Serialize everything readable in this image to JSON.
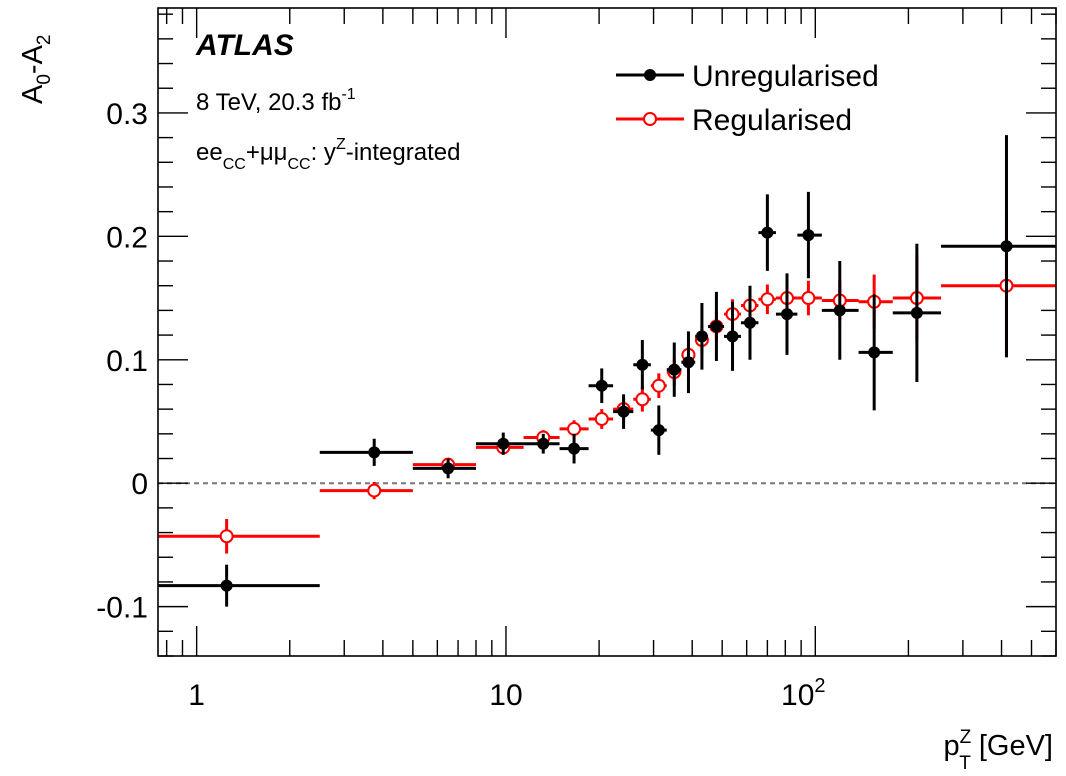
{
  "chart_data": {
    "type": "scatter",
    "title": "",
    "xlabel": "p_T^Z [GeV]",
    "ylabel": "A_0-A_2",
    "xscale": "log",
    "xlim": [
      0.75,
      600
    ],
    "ylim": [
      -0.14,
      0.385
    ],
    "xticks": [
      {
        "value": 1,
        "label": "1"
      },
      {
        "value": 10,
        "label": "10"
      },
      {
        "value": 100,
        "label": "10^2"
      }
    ],
    "yticks": [
      {
        "value": -0.1,
        "label": "-0.1"
      },
      {
        "value": 0,
        "label": "0"
      },
      {
        "value": 0.1,
        "label": "0.1"
      },
      {
        "value": 0.2,
        "label": "0.2"
      },
      {
        "value": 0.3,
        "label": "0.3"
      }
    ],
    "reference_line": {
      "y": 0,
      "style": "dashed",
      "color": "#777777"
    },
    "annotations": {
      "experiment": "ATLAS",
      "energy": "8 TeV, 20.3 fb",
      "lumi_exp": "-1",
      "channel": "ee_CC+μμ_CC: y^Z-integrated"
    },
    "legend_position": "top-right",
    "series": [
      {
        "name": "Unregularised",
        "color": "#000000",
        "marker": "filled-circle",
        "points": [
          {
            "x": 1.25,
            "xlo": 0.75,
            "xhi": 2.5,
            "y": -0.083,
            "yerr": 0.017
          },
          {
            "x": 3.75,
            "xlo": 2.5,
            "xhi": 5.0,
            "y": 0.025,
            "yerr": 0.011
          },
          {
            "x": 6.5,
            "xlo": 5.0,
            "xhi": 8.0,
            "y": 0.012,
            "yerr": 0.008
          },
          {
            "x": 9.8,
            "xlo": 8.0,
            "xhi": 11.4,
            "y": 0.032,
            "yerr": 0.009
          },
          {
            "x": 13.2,
            "xlo": 11.4,
            "xhi": 14.9,
            "y": 0.032,
            "yerr": 0.008
          },
          {
            "x": 16.6,
            "xlo": 14.9,
            "xhi": 18.5,
            "y": 0.028,
            "yerr": 0.012
          },
          {
            "x": 20.4,
            "xlo": 18.5,
            "xhi": 22.2,
            "y": 0.079,
            "yerr": 0.014
          },
          {
            "x": 24.0,
            "xlo": 22.2,
            "xhi": 25.8,
            "y": 0.058,
            "yerr": 0.014
          },
          {
            "x": 27.6,
            "xlo": 25.8,
            "xhi": 29.4,
            "y": 0.096,
            "yerr": 0.02
          },
          {
            "x": 31.2,
            "xlo": 29.4,
            "xhi": 33.1,
            "y": 0.043,
            "yerr": 0.02
          },
          {
            "x": 35.0,
            "xlo": 33.1,
            "xhi": 36.9,
            "y": 0.092,
            "yerr": 0.022
          },
          {
            "x": 38.9,
            "xlo": 36.9,
            "xhi": 40.9,
            "y": 0.098,
            "yerr": 0.025
          },
          {
            "x": 43.0,
            "xlo": 40.9,
            "xhi": 45.0,
            "y": 0.119,
            "yerr": 0.027
          },
          {
            "x": 47.9,
            "xlo": 45.0,
            "xhi": 50.7,
            "y": 0.127,
            "yerr": 0.028
          },
          {
            "x": 54.0,
            "xlo": 50.7,
            "xhi": 57.5,
            "y": 0.119,
            "yerr": 0.028
          },
          {
            "x": 61.5,
            "xlo": 57.5,
            "xhi": 65.5,
            "y": 0.13,
            "yerr": 0.03
          },
          {
            "x": 70.0,
            "xlo": 65.5,
            "xhi": 74.6,
            "y": 0.203,
            "yerr": 0.031
          },
          {
            "x": 81.0,
            "xlo": 74.6,
            "xhi": 87.5,
            "y": 0.137,
            "yerr": 0.033
          },
          {
            "x": 95.0,
            "xlo": 87.5,
            "xhi": 105,
            "y": 0.201,
            "yerr": 0.035
          },
          {
            "x": 120,
            "xlo": 105,
            "xhi": 138,
            "y": 0.14,
            "yerr": 0.04
          },
          {
            "x": 155,
            "xlo": 138,
            "xhi": 178,
            "y": 0.106,
            "yerr": 0.047
          },
          {
            "x": 213,
            "xlo": 178,
            "xhi": 255,
            "y": 0.138,
            "yerr": 0.056
          },
          {
            "x": 415,
            "xlo": 255,
            "xhi": 600,
            "y": 0.192,
            "yerr": 0.09
          }
        ]
      },
      {
        "name": "Regularised",
        "color": "#ff0000",
        "marker": "open-circle",
        "points": [
          {
            "x": 1.25,
            "xlo": 0.75,
            "xhi": 2.5,
            "y": -0.043,
            "yerr": 0.014
          },
          {
            "x": 3.75,
            "xlo": 2.5,
            "xhi": 5.0,
            "y": -0.006,
            "yerr": 0.007
          },
          {
            "x": 6.5,
            "xlo": 5.0,
            "xhi": 8.0,
            "y": 0.015,
            "yerr": 0.005
          },
          {
            "x": 9.8,
            "xlo": 8.0,
            "xhi": 11.4,
            "y": 0.029,
            "yerr": 0.005
          },
          {
            "x": 13.2,
            "xlo": 11.4,
            "xhi": 14.9,
            "y": 0.037,
            "yerr": 0.006
          },
          {
            "x": 16.6,
            "xlo": 14.9,
            "xhi": 18.5,
            "y": 0.044,
            "yerr": 0.007
          },
          {
            "x": 20.4,
            "xlo": 18.5,
            "xhi": 22.2,
            "y": 0.052,
            "yerr": 0.008
          },
          {
            "x": 24.0,
            "xlo": 22.2,
            "xhi": 25.8,
            "y": 0.06,
            "yerr": 0.009
          },
          {
            "x": 27.6,
            "xlo": 25.8,
            "xhi": 29.4,
            "y": 0.068,
            "yerr": 0.01
          },
          {
            "x": 31.2,
            "xlo": 29.4,
            "xhi": 33.1,
            "y": 0.079,
            "yerr": 0.01
          },
          {
            "x": 35.0,
            "xlo": 33.1,
            "xhi": 36.9,
            "y": 0.09,
            "yerr": 0.011
          },
          {
            "x": 38.9,
            "xlo": 36.9,
            "xhi": 40.9,
            "y": 0.104,
            "yerr": 0.011
          },
          {
            "x": 43.0,
            "xlo": 40.9,
            "xhi": 45.0,
            "y": 0.116,
            "yerr": 0.012
          },
          {
            "x": 47.9,
            "xlo": 45.0,
            "xhi": 50.7,
            "y": 0.127,
            "yerr": 0.012
          },
          {
            "x": 54.0,
            "xlo": 50.7,
            "xhi": 57.5,
            "y": 0.137,
            "yerr": 0.012
          },
          {
            "x": 61.5,
            "xlo": 57.5,
            "xhi": 65.5,
            "y": 0.144,
            "yerr": 0.012
          },
          {
            "x": 70.0,
            "xlo": 65.5,
            "xhi": 74.6,
            "y": 0.149,
            "yerr": 0.012
          },
          {
            "x": 81.0,
            "xlo": 74.6,
            "xhi": 87.5,
            "y": 0.15,
            "yerr": 0.012
          },
          {
            "x": 95.0,
            "xlo": 87.5,
            "xhi": 105,
            "y": 0.15,
            "yerr": 0.014
          },
          {
            "x": 120,
            "xlo": 105,
            "xhi": 138,
            "y": 0.148,
            "yerr": 0.016
          },
          {
            "x": 155,
            "xlo": 138,
            "xhi": 178,
            "y": 0.147,
            "yerr": 0.022
          },
          {
            "x": 213,
            "xlo": 178,
            "xhi": 255,
            "y": 0.15,
            "yerr": 0.035
          },
          {
            "x": 415,
            "xlo": 255,
            "xhi": 600,
            "y": 0.16,
            "yerr": 0.058
          }
        ]
      }
    ]
  }
}
